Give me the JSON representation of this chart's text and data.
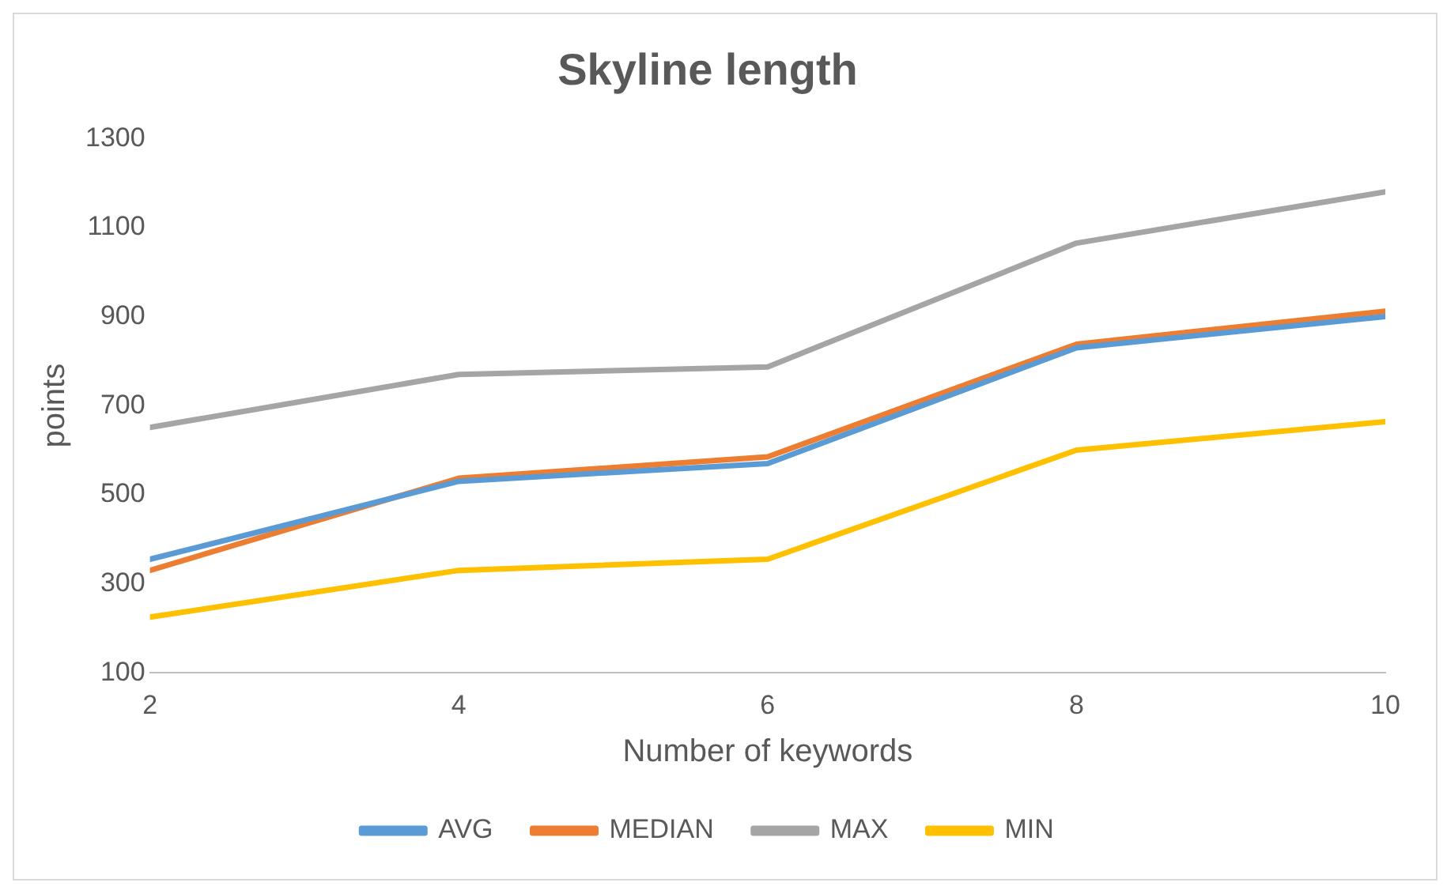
{
  "chart_data": {
    "type": "line",
    "title": "Skyline length",
    "xlabel": "Number of keywords",
    "ylabel": "points",
    "x": [
      2,
      4,
      6,
      8,
      10
    ],
    "series": [
      {
        "name": "AVG",
        "color": "#5b9bd5",
        "values": [
          355,
          530,
          570,
          830,
          900
        ]
      },
      {
        "name": "MEDIAN",
        "color": "#ed7d31",
        "values": [
          330,
          537,
          585,
          838,
          912
        ]
      },
      {
        "name": "MAX",
        "color": "#a5a5a5",
        "values": [
          651,
          770,
          787,
          1065,
          1180
        ]
      },
      {
        "name": "MIN",
        "color": "#ffc000",
        "values": [
          225,
          330,
          355,
          600,
          664
        ]
      }
    ],
    "xlim": [
      2,
      10
    ],
    "xticks": [
      2,
      4,
      6,
      8,
      10
    ],
    "ylim": [
      100,
      1300
    ],
    "yticks": [
      100,
      300,
      500,
      700,
      900,
      1100,
      1300
    ],
    "grid": false,
    "legend": "bottom",
    "marker": "none",
    "line_style": "solid"
  }
}
